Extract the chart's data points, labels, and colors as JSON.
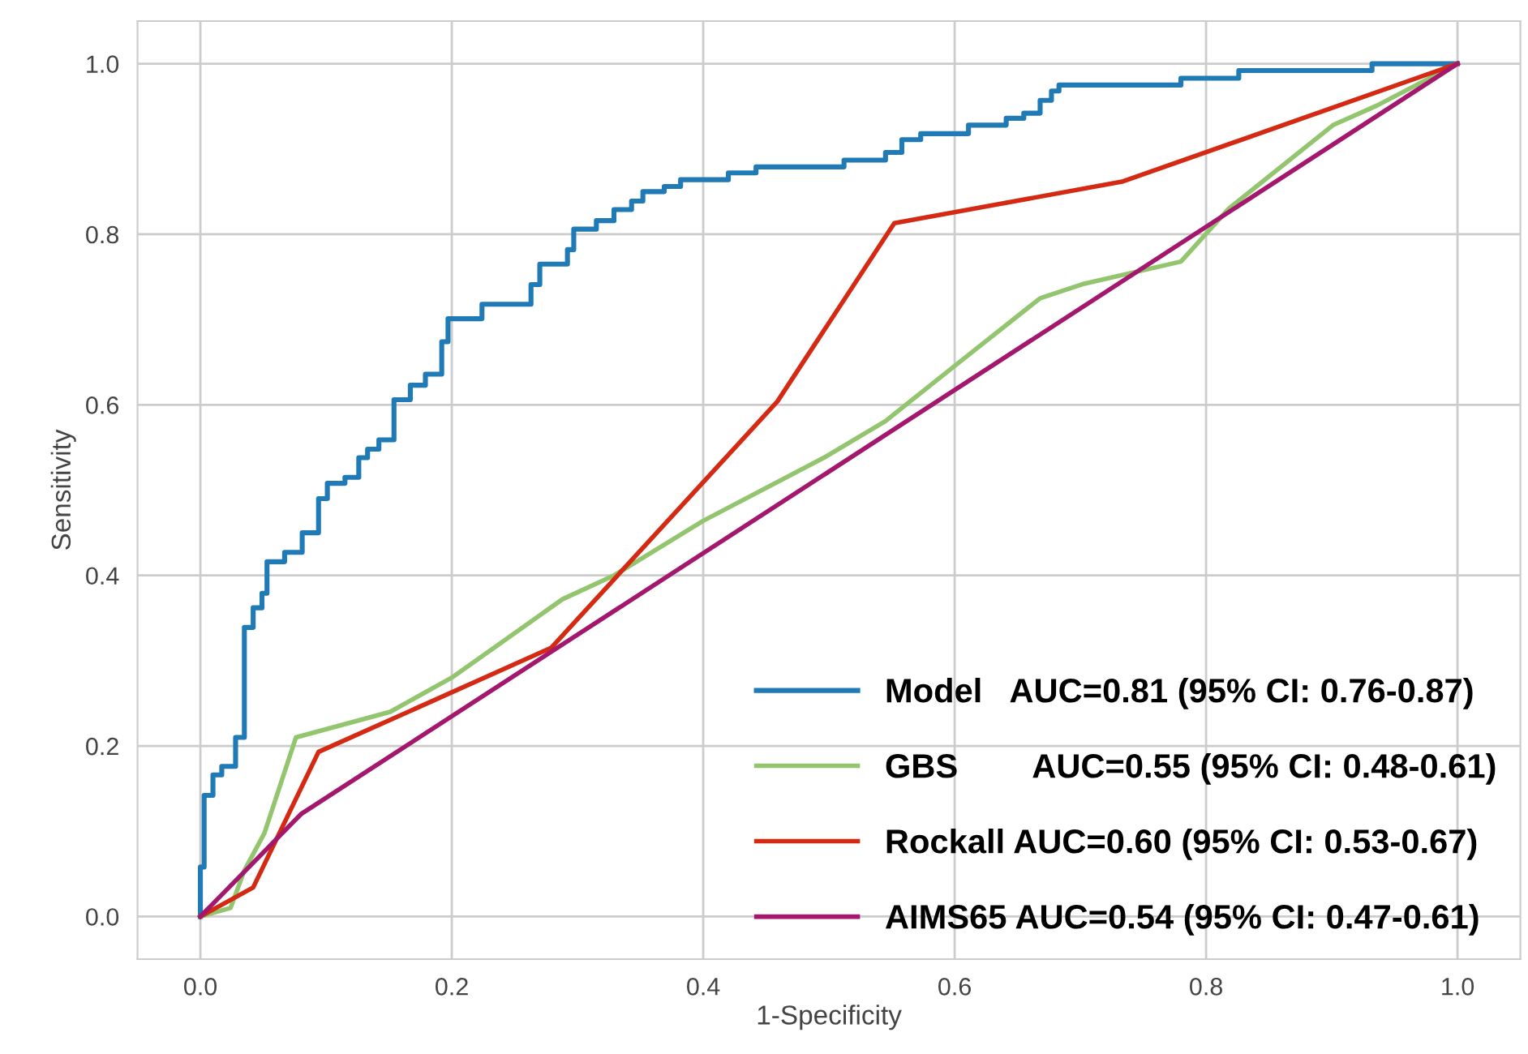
{
  "chart_data": {
    "type": "line",
    "xlabel": "1-Specificity",
    "ylabel": "Sensitivity",
    "xlim": [
      -0.05,
      1.05
    ],
    "ylim": [
      -0.05,
      1.05
    ],
    "xticks": [
      {
        "value": 0,
        "label": "0.0"
      },
      0.2,
      0.4,
      0.6,
      0.8,
      {
        "value": 1,
        "label": "1.0"
      }
    ],
    "yticks": [
      {
        "value": 0,
        "label": "0.0"
      },
      0.2,
      0.4,
      0.6,
      0.8,
      {
        "value": 1,
        "label": "1.0"
      }
    ],
    "grid": true,
    "legend": "bottom right",
    "series": [
      {
        "name": "Model   AUC=0.81 (95% CI: 0.76-0.87)",
        "type": "step",
        "color": "#1f7ab5",
        "x": [
          0,
          0,
          0.003,
          0.01,
          0.017,
          0.028,
          0.035,
          0.042,
          0.049,
          0.053,
          0.067,
          0.081,
          0.094,
          0.101,
          0.115,
          0.126,
          0.133,
          0.142,
          0.154,
          0.167,
          0.179,
          0.192,
          0.197,
          0.224,
          0.263,
          0.27,
          0.292,
          0.297,
          0.315,
          0.329,
          0.343,
          0.352,
          0.369,
          0.382,
          0.42,
          0.442,
          0.512,
          0.545,
          0.558,
          0.573,
          0.611,
          0.641,
          0.655,
          0.668,
          0.677,
          0.683,
          0.78,
          0.826,
          0.932,
          1
        ],
        "values": [
          0,
          0.058,
          0.142,
          0.166,
          0.176,
          0.21,
          0.339,
          0.362,
          0.379,
          0.416,
          0.427,
          0.45,
          0.49,
          0.508,
          0.515,
          0.538,
          0.548,
          0.559,
          0.606,
          0.623,
          0.636,
          0.674,
          0.701,
          0.718,
          0.741,
          0.765,
          0.782,
          0.806,
          0.816,
          0.829,
          0.839,
          0.85,
          0.856,
          0.864,
          0.872,
          0.879,
          0.887,
          0.896,
          0.911,
          0.918,
          0.928,
          0.936,
          0.942,
          0.957,
          0.968,
          0.975,
          0.983,
          0.992,
          1.0,
          1.0
        ]
      },
      {
        "name": "GBS        AUC=0.55 (95% CI: 0.48-0.61)",
        "color": "#92c56e",
        "x": [
          0,
          0.024,
          0.035,
          0.051,
          0.076,
          0.151,
          0.201,
          0.288,
          0.329,
          0.4,
          0.496,
          0.545,
          0.602,
          0.668,
          0.703,
          0.78,
          0.818,
          0.901,
          0.936,
          1
        ],
        "values": [
          0,
          0.01,
          0.054,
          0.098,
          0.21,
          0.24,
          0.281,
          0.372,
          0.4,
          0.464,
          0.538,
          0.581,
          0.648,
          0.725,
          0.742,
          0.768,
          0.83,
          0.928,
          0.951,
          1
        ]
      },
      {
        "name": "Rockall AUC=0.60 (95% CI: 0.53-0.67)",
        "color": "#d42a14",
        "x": [
          0,
          0.042,
          0.094,
          0.279,
          0.459,
          0.552,
          0.734,
          1
        ],
        "values": [
          0,
          0.034,
          0.193,
          0.315,
          0.604,
          0.813,
          0.862,
          1
        ]
      },
      {
        "name": "AIMS65 AUC=0.54 (95% CI: 0.47-0.61)",
        "color": "#a3176d",
        "x": [
          0,
          0.08,
          1
        ],
        "values": [
          0,
          0.12,
          1
        ]
      }
    ]
  }
}
